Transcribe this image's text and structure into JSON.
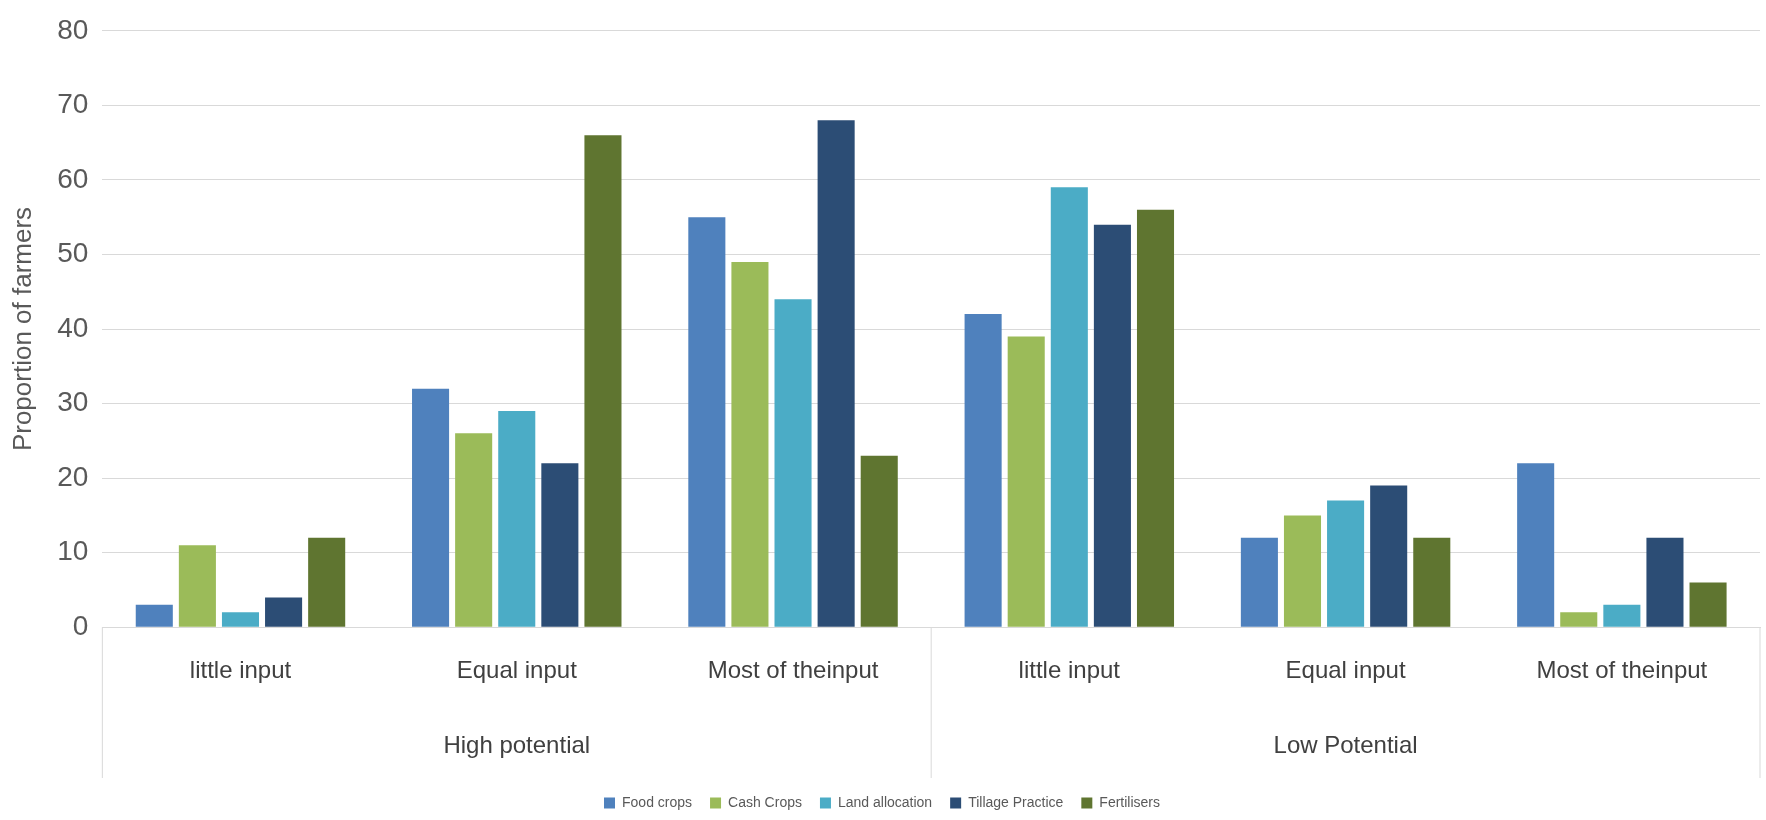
{
  "chart_data": {
    "type": "bar",
    "ylabel": "Proportion of farmers",
    "categories": [
      "little input",
      "Equal input",
      "Most of theinput",
      "little input",
      "Equal input",
      "Most of theinput"
    ],
    "annotations": [
      "High potential",
      "Low Potential"
    ],
    "series": [
      {
        "name": "Food crops",
        "color": "#4f81bd",
        "values": [
          3,
          32,
          55,
          42,
          12,
          22
        ]
      },
      {
        "name": "Cash Crops",
        "color": "#9bbb59",
        "values": [
          11,
          26,
          49,
          39,
          15,
          2
        ]
      },
      {
        "name": "Land allocation",
        "color": "#4bacc6",
        "values": [
          2,
          29,
          44,
          59,
          17,
          3
        ]
      },
      {
        "name": "Tillage Practice",
        "color": "#2c4d75",
        "values": [
          4,
          22,
          68,
          54,
          19,
          12
        ]
      },
      {
        "name": "Fertilisers",
        "color": "#5f7530",
        "values": [
          12,
          66,
          23,
          56,
          12,
          6
        ]
      }
    ],
    "ylim": [
      0,
      80
    ],
    "yticks": [
      0,
      10,
      20,
      30,
      40,
      50,
      60,
      70,
      80
    ],
    "grid": "y",
    "legend": "bottom"
  }
}
